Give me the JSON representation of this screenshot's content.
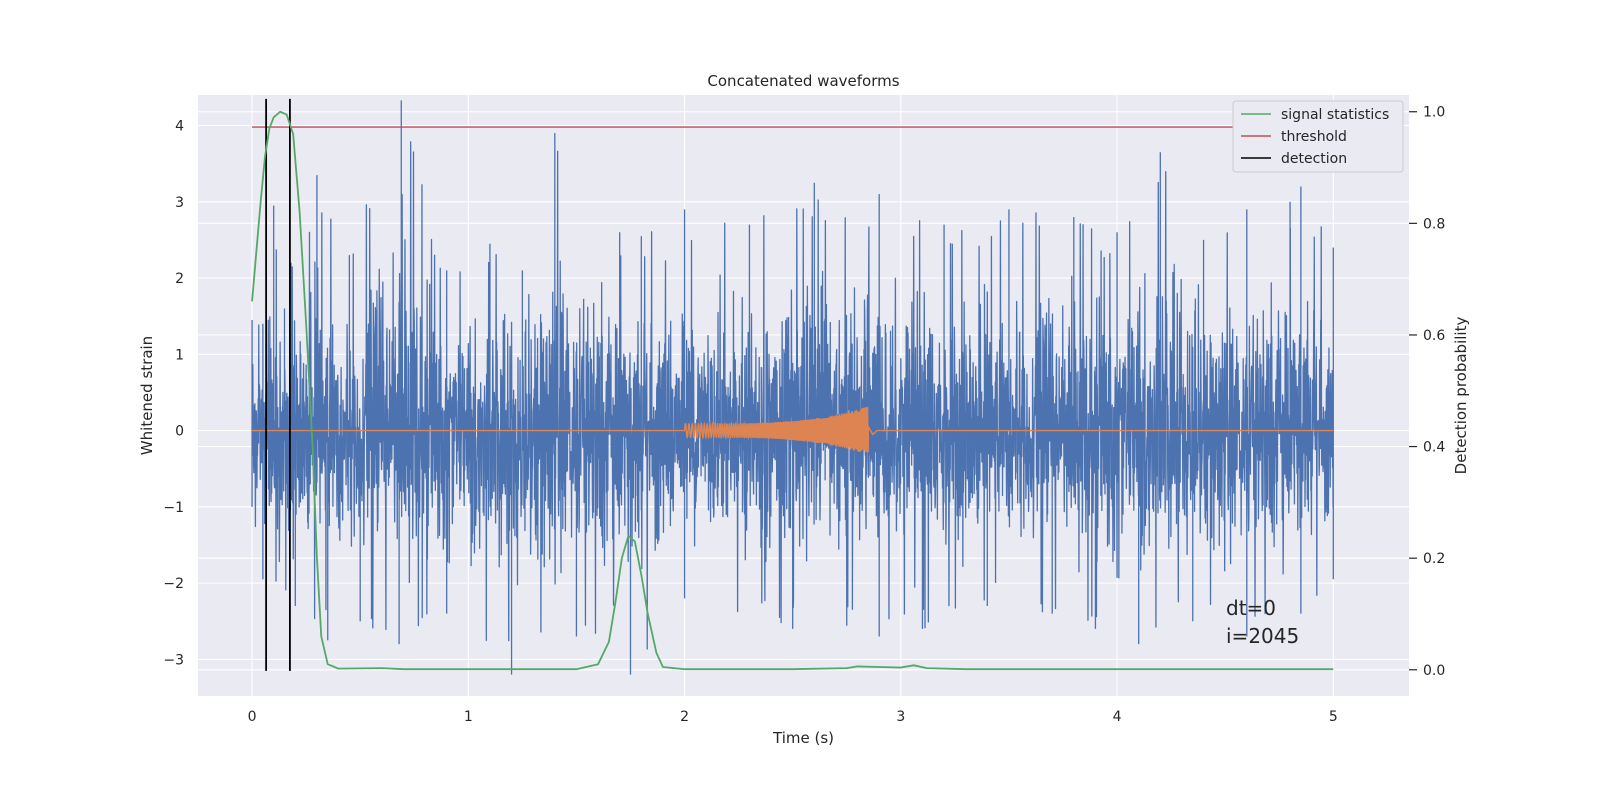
{
  "chart_data": {
    "type": "line",
    "title": "Concatenated waveforms",
    "xlabel": "Time (s)",
    "ylabel": "Whitened strain",
    "ylabel_right": "Detection probability",
    "xlim": [
      -0.25,
      5.35
    ],
    "ylim": [
      -3.48,
      4.4
    ],
    "ylim_right": [
      -0.047,
      1.03
    ],
    "x_ticks": [
      0,
      1,
      2,
      3,
      4,
      5
    ],
    "x_tick_labels": [
      "0",
      "1",
      "2",
      "3",
      "4",
      "5"
    ],
    "y_ticks": [
      -3,
      -2,
      -1,
      0,
      1,
      2,
      3,
      4
    ],
    "y_tick_labels": [
      "−3",
      "−2",
      "−1",
      "0",
      "1",
      "2",
      "3",
      "4"
    ],
    "y_right_ticks": [
      0.0,
      0.2,
      0.4,
      0.6,
      0.8,
      1.0
    ],
    "y_right_tick_labels": [
      "0.0",
      "0.2",
      "0.4",
      "0.6",
      "0.8",
      "1.0"
    ],
    "grid": true,
    "legend_position": "top-right",
    "colors": {
      "background": "#eaeaf2",
      "grid": "#ffffff",
      "noise": "#4c72b0",
      "template": "#dd8452",
      "signal_statistics": "#55a868",
      "threshold": "#c44e52",
      "detection": "#000000"
    },
    "series": [
      {
        "name": "",
        "kind": "noise",
        "description_range": [
          0,
          5
        ],
        "envelope_upper": [
          [
            0,
            1.45
          ],
          [
            0.05,
            1.4
          ],
          [
            0.1,
            2.95
          ],
          [
            0.15,
            1.6
          ],
          [
            0.18,
            2.2
          ],
          [
            0.3,
            3.35
          ],
          [
            0.45,
            2.3
          ],
          [
            0.69,
            4.33
          ],
          [
            0.9,
            2.1
          ],
          [
            1.1,
            2.45
          ],
          [
            1.25,
            2.1
          ],
          [
            1.4,
            3.9
          ],
          [
            1.7,
            2.6
          ],
          [
            1.8,
            2.55
          ],
          [
            2.0,
            2.9
          ],
          [
            2.3,
            2.7
          ],
          [
            2.6,
            3.25
          ],
          [
            2.9,
            3.1
          ],
          [
            3.2,
            2.7
          ],
          [
            3.5,
            2.9
          ],
          [
            3.8,
            2.8
          ],
          [
            4.0,
            2.6
          ],
          [
            4.2,
            3.65
          ],
          [
            4.4,
            2.5
          ],
          [
            4.6,
            2.9
          ],
          [
            4.8,
            3.0
          ],
          [
            4.85,
            3.2
          ],
          [
            5.0,
            2.4
          ]
        ],
        "envelope_lower": [
          [
            0,
            -1.0
          ],
          [
            0.05,
            -1.95
          ],
          [
            0.2,
            -2.3
          ],
          [
            0.35,
            -2.75
          ],
          [
            0.5,
            -2.5
          ],
          [
            0.68,
            -2.8
          ],
          [
            0.9,
            -2.4
          ],
          [
            1.2,
            -3.2
          ],
          [
            1.5,
            -2.7
          ],
          [
            1.75,
            -3.2
          ],
          [
            2.0,
            -2.2
          ],
          [
            2.5,
            -2.6
          ],
          [
            2.9,
            -2.7
          ],
          [
            3.1,
            -2.6
          ],
          [
            3.4,
            -2.3
          ],
          [
            3.7,
            -2.4
          ],
          [
            3.9,
            -2.6
          ],
          [
            4.1,
            -2.8
          ],
          [
            4.35,
            -2.5
          ],
          [
            4.6,
            -2.7
          ],
          [
            4.85,
            -2.4
          ],
          [
            5.0,
            -1.95
          ]
        ]
      },
      {
        "name": "",
        "kind": "template",
        "chirp_start": 2.0,
        "chirp_end": 2.85,
        "amplitude_start": 0.09,
        "amplitude_peak": 0.32
      },
      {
        "name": "signal statistics",
        "axis": "right",
        "points": [
          [
            0,
            0.66
          ],
          [
            0.02,
            0.75
          ],
          [
            0.04,
            0.84
          ],
          [
            0.06,
            0.92
          ],
          [
            0.08,
            0.97
          ],
          [
            0.1,
            0.99
          ],
          [
            0.13,
            1.0
          ],
          [
            0.16,
            0.995
          ],
          [
            0.19,
            0.96
          ],
          [
            0.22,
            0.82
          ],
          [
            0.25,
            0.62
          ],
          [
            0.28,
            0.4
          ],
          [
            0.3,
            0.2
          ],
          [
            0.32,
            0.06
          ],
          [
            0.35,
            0.01
          ],
          [
            0.4,
            0.002
          ],
          [
            0.6,
            0.003
          ],
          [
            0.7,
            0.001
          ],
          [
            1.0,
            0.001
          ],
          [
            1.5,
            0.001
          ],
          [
            1.6,
            0.01
          ],
          [
            1.65,
            0.05
          ],
          [
            1.68,
            0.12
          ],
          [
            1.71,
            0.2
          ],
          [
            1.74,
            0.24
          ],
          [
            1.77,
            0.23
          ],
          [
            1.8,
            0.17
          ],
          [
            1.83,
            0.1
          ],
          [
            1.87,
            0.03
          ],
          [
            1.9,
            0.005
          ],
          [
            2.0,
            0.001
          ],
          [
            2.5,
            0.001
          ],
          [
            2.75,
            0.003
          ],
          [
            2.8,
            0.006
          ],
          [
            2.9,
            0.005
          ],
          [
            3.0,
            0.004
          ],
          [
            3.06,
            0.008
          ],
          [
            3.12,
            0.003
          ],
          [
            3.3,
            0.001
          ],
          [
            4.0,
            0.001
          ],
          [
            4.5,
            0.001
          ],
          [
            5.0,
            0.001
          ]
        ]
      },
      {
        "name": "threshold",
        "axis": "left",
        "x": [
          0,
          5
        ],
        "y": [
          3.98,
          3.98
        ]
      },
      {
        "name": "detection",
        "axis": "left",
        "x_positions": [
          0.065,
          0.175
        ],
        "y_range": [
          -3.15,
          4.35
        ]
      }
    ],
    "annotations": [
      "dt=0",
      "i=2045"
    ]
  }
}
